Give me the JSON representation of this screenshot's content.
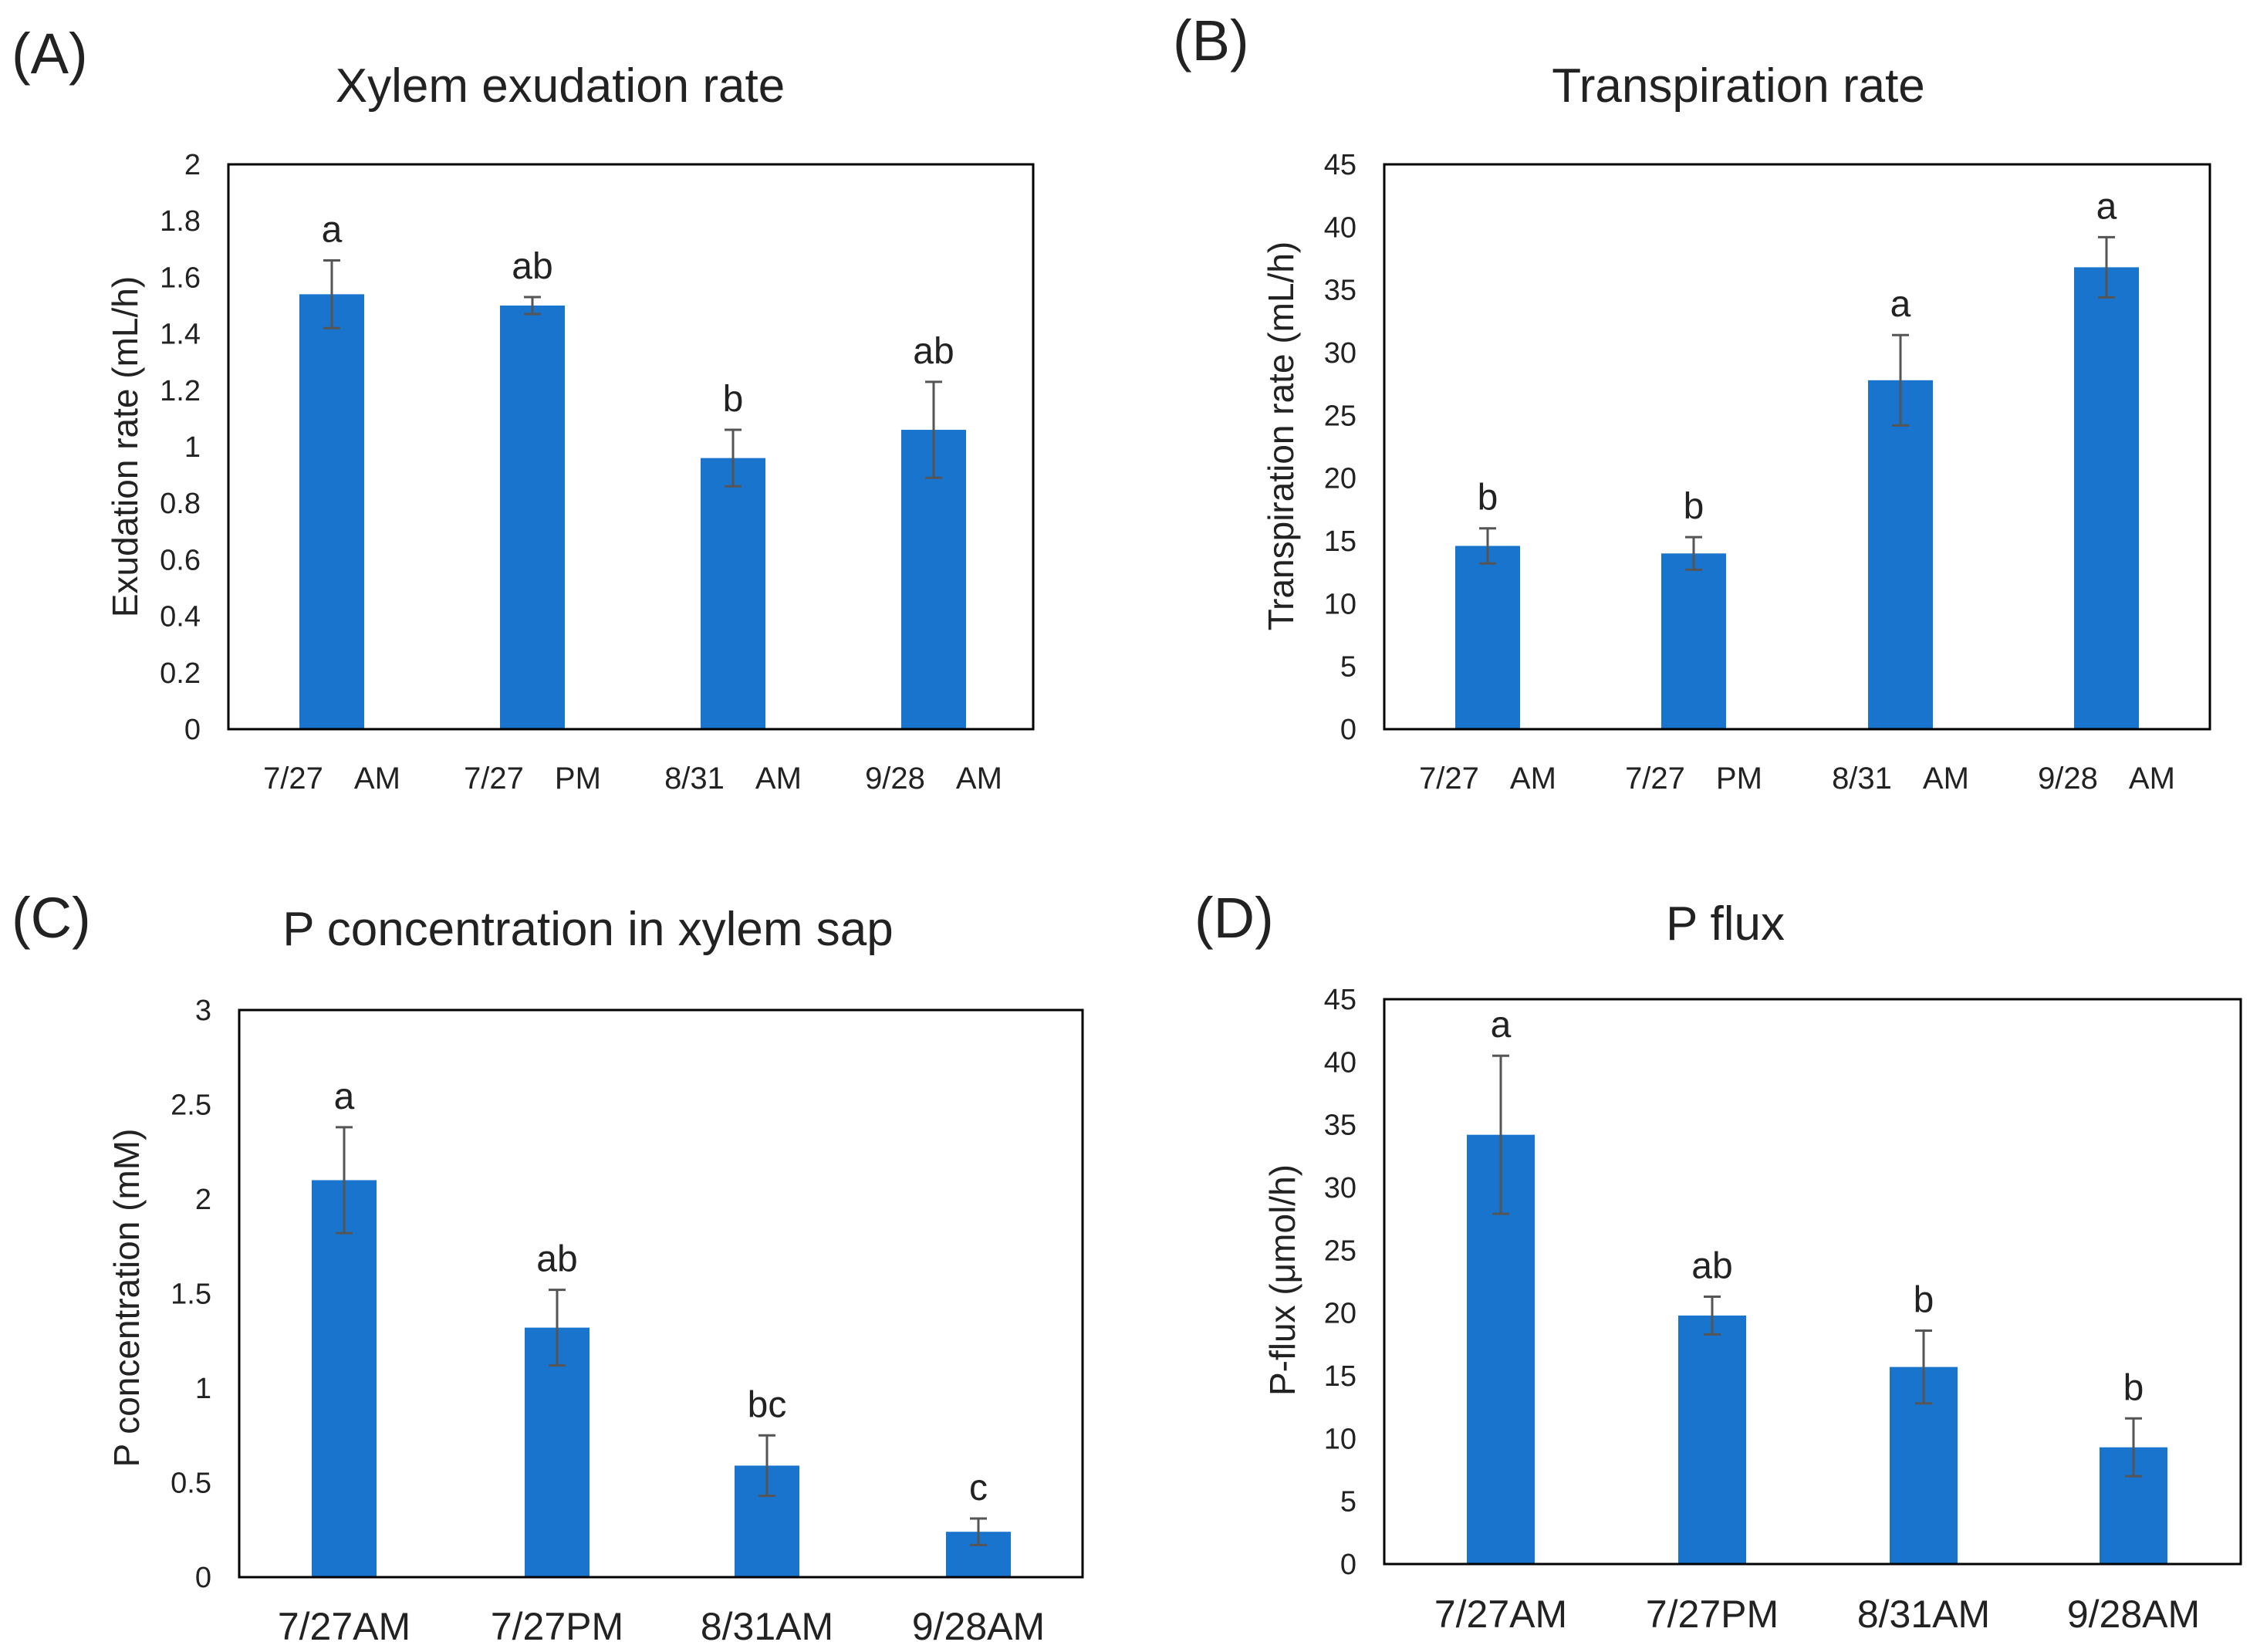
{
  "chart_data": [
    {
      "panel": "(A)",
      "type": "bar",
      "title": "Xylem exudation rate",
      "ylabel": "Exudation rate (mL/h)",
      "xlabel": "",
      "ylim": [
        0,
        2
      ],
      "yticks": [
        0,
        0.2,
        0.4,
        0.6,
        0.8,
        1,
        1.2,
        1.4,
        1.6,
        1.8,
        2
      ],
      "categories": [
        "7/27　AM",
        "7/27　PM",
        "8/31　AM",
        "9/28　AM"
      ],
      "values": [
        1.54,
        1.5,
        0.96,
        1.06
      ],
      "errors": [
        0.12,
        0.03,
        0.1,
        0.17
      ],
      "significance": [
        "a",
        "ab",
        "b",
        "ab"
      ],
      "grid": false,
      "bar_color": "#1874cd"
    },
    {
      "panel": "(B)",
      "type": "bar",
      "title": "Transpiration rate",
      "ylabel": "Transpiration rate (mL/h)",
      "xlabel": "",
      "ylim": [
        0,
        45
      ],
      "yticks": [
        0,
        5,
        10,
        15,
        20,
        25,
        30,
        35,
        40,
        45
      ],
      "categories": [
        "7/27　AM",
        "7/27　PM",
        "8/31　AM",
        "9/28　AM"
      ],
      "values": [
        14.6,
        14,
        27.8,
        36.8
      ],
      "errors": [
        1.4,
        1.3,
        3.6,
        2.4
      ],
      "significance": [
        "b",
        "b",
        "a",
        "a"
      ],
      "grid": false,
      "bar_color": "#1874cd"
    },
    {
      "panel": "(C)",
      "type": "bar",
      "title": "P concentration in xylem sap",
      "ylabel": "P concentration (mM)",
      "xlabel": "",
      "ylim": [
        0,
        3
      ],
      "yticks": [
        0,
        0.5,
        1,
        1.5,
        2,
        2.5,
        3
      ],
      "categories": [
        "7/27AM",
        "7/27PM",
        "8/31AM",
        "9/28AM"
      ],
      "values": [
        2.1,
        1.32,
        0.59,
        0.24
      ],
      "errors": [
        0.28,
        0.2,
        0.16,
        0.07
      ],
      "significance": [
        "a",
        "ab",
        "bc",
        "c"
      ],
      "grid": false,
      "bar_color": "#1874cd"
    },
    {
      "panel": "(D)",
      "type": "bar",
      "title": "P flux",
      "ylabel": "P-flux (μmol/h)",
      "xlabel": "",
      "ylim": [
        0,
        45
      ],
      "yticks": [
        0,
        5,
        10,
        15,
        20,
        25,
        30,
        35,
        40,
        45
      ],
      "categories": [
        "7/27AM",
        "7/27PM",
        "8/31AM",
        "9/28AM"
      ],
      "values": [
        34.2,
        19.8,
        15.7,
        9.3
      ],
      "errors": [
        6.3,
        1.5,
        2.9,
        2.3
      ],
      "significance": [
        "a",
        "ab",
        "b",
        "b"
      ],
      "grid": false,
      "bar_color": "#1874cd"
    }
  ]
}
